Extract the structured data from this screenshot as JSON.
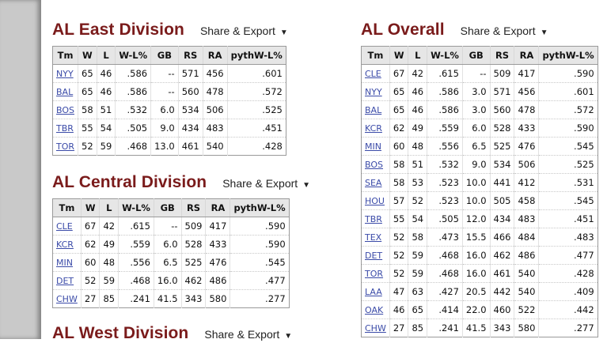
{
  "share_label": "Share & Export",
  "caret": "▼",
  "columns": [
    "Tm",
    "W",
    "L",
    "W-L%",
    "GB",
    "RS",
    "RA",
    "pythW-L%"
  ],
  "east": {
    "title": "AL East Division",
    "rows": [
      [
        "NYY",
        "65",
        "46",
        ".586",
        "--",
        "571",
        "456",
        ".601"
      ],
      [
        "BAL",
        "65",
        "46",
        ".586",
        "--",
        "560",
        "478",
        ".572"
      ],
      [
        "BOS",
        "58",
        "51",
        ".532",
        "6.0",
        "534",
        "506",
        ".525"
      ],
      [
        "TBR",
        "55",
        "54",
        ".505",
        "9.0",
        "434",
        "483",
        ".451"
      ],
      [
        "TOR",
        "52",
        "59",
        ".468",
        "13.0",
        "461",
        "540",
        ".428"
      ]
    ]
  },
  "central": {
    "title": "AL Central Division",
    "rows": [
      [
        "CLE",
        "67",
        "42",
        ".615",
        "--",
        "509",
        "417",
        ".590"
      ],
      [
        "KCR",
        "62",
        "49",
        ".559",
        "6.0",
        "528",
        "433",
        ".590"
      ],
      [
        "MIN",
        "60",
        "48",
        ".556",
        "6.5",
        "525",
        "476",
        ".545"
      ],
      [
        "DET",
        "52",
        "59",
        ".468",
        "16.0",
        "462",
        "486",
        ".477"
      ],
      [
        "CHW",
        "27",
        "85",
        ".241",
        "41.5",
        "343",
        "580",
        ".277"
      ]
    ]
  },
  "west": {
    "title": "AL West Division"
  },
  "overall": {
    "title": "AL Overall",
    "rows": [
      [
        "CLE",
        "67",
        "42",
        ".615",
        "--",
        "509",
        "417",
        ".590"
      ],
      [
        "NYY",
        "65",
        "46",
        ".586",
        "3.0",
        "571",
        "456",
        ".601"
      ],
      [
        "BAL",
        "65",
        "46",
        ".586",
        "3.0",
        "560",
        "478",
        ".572"
      ],
      [
        "KCR",
        "62",
        "49",
        ".559",
        "6.0",
        "528",
        "433",
        ".590"
      ],
      [
        "MIN",
        "60",
        "48",
        ".556",
        "6.5",
        "525",
        "476",
        ".545"
      ],
      [
        "BOS",
        "58",
        "51",
        ".532",
        "9.0",
        "534",
        "506",
        ".525"
      ],
      [
        "SEA",
        "58",
        "53",
        ".523",
        "10.0",
        "441",
        "412",
        ".531"
      ],
      [
        "HOU",
        "57",
        "52",
        ".523",
        "10.0",
        "505",
        "458",
        ".545"
      ],
      [
        "TBR",
        "55",
        "54",
        ".505",
        "12.0",
        "434",
        "483",
        ".451"
      ],
      [
        "TEX",
        "52",
        "58",
        ".473",
        "15.5",
        "466",
        "484",
        ".483"
      ],
      [
        "DET",
        "52",
        "59",
        ".468",
        "16.0",
        "462",
        "486",
        ".477"
      ],
      [
        "TOR",
        "52",
        "59",
        ".468",
        "16.0",
        "461",
        "540",
        ".428"
      ],
      [
        "LAA",
        "47",
        "63",
        ".427",
        "20.5",
        "442",
        "540",
        ".409"
      ],
      [
        "OAK",
        "46",
        "65",
        ".414",
        "22.0",
        "460",
        "522",
        ".442"
      ],
      [
        "CHW",
        "27",
        "85",
        ".241",
        "41.5",
        "343",
        "580",
        ".277"
      ]
    ]
  }
}
